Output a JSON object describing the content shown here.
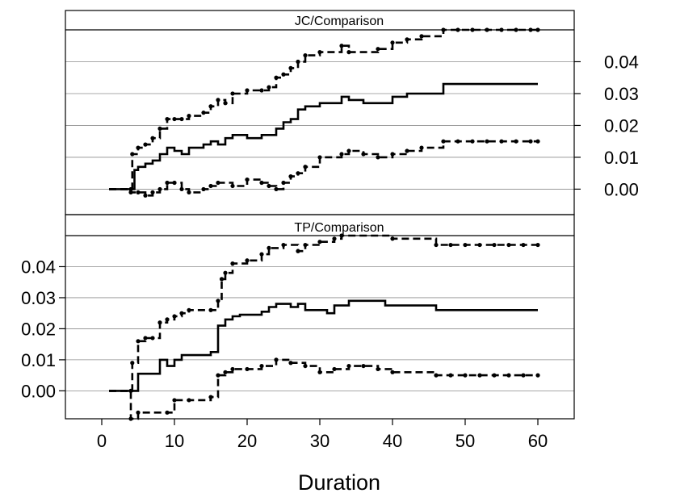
{
  "chart_data": {
    "type": "line",
    "xlabel": "Duration",
    "xlim": [
      -5,
      65
    ],
    "xticks": [
      0,
      10,
      20,
      30,
      40,
      50,
      60
    ],
    "panels": [
      {
        "title": "JC/Comparison",
        "ylim": [
          -0.008,
          0.05
        ],
        "yticks": [
          0.0,
          0.01,
          0.02,
          0.03,
          0.04
        ],
        "ytick_labels": [
          "0.00",
          "0.01",
          "0.02",
          "0.03",
          "0.04"
        ],
        "y_axis_side": "right",
        "grid": true,
        "series": [
          {
            "style": "solid",
            "steps": [
              [
                1,
                0.0
              ],
              [
                4,
                0.0
              ],
              [
                4.5,
                0.006
              ],
              [
                5,
                0.007
              ],
              [
                6,
                0.008
              ],
              [
                7,
                0.009
              ],
              [
                8,
                0.011
              ],
              [
                9,
                0.013
              ],
              [
                10,
                0.012
              ],
              [
                11,
                0.011
              ],
              [
                12,
                0.013
              ],
              [
                14,
                0.014
              ],
              [
                15,
                0.015
              ],
              [
                16,
                0.014
              ],
              [
                17,
                0.016
              ],
              [
                18,
                0.017
              ],
              [
                20,
                0.016
              ],
              [
                22,
                0.017
              ],
              [
                24,
                0.019
              ],
              [
                25,
                0.021
              ],
              [
                26,
                0.022
              ],
              [
                27,
                0.025
              ],
              [
                28,
                0.026
              ],
              [
                30,
                0.027
              ],
              [
                31,
                0.027
              ],
              [
                33,
                0.029
              ],
              [
                34,
                0.028
              ],
              [
                36,
                0.027
              ],
              [
                38,
                0.027
              ],
              [
                40,
                0.029
              ],
              [
                42,
                0.03
              ],
              [
                47,
                0.033
              ],
              [
                60,
                0.033
              ]
            ]
          },
          {
            "style": "dashed",
            "steps": [
              [
                1,
                0.0
              ],
              [
                4,
                0.0
              ],
              [
                4.2,
                0.011
              ],
              [
                5,
                0.013
              ],
              [
                6,
                0.014
              ],
              [
                7,
                0.016
              ],
              [
                8,
                0.019
              ],
              [
                9,
                0.022
              ],
              [
                10,
                0.022
              ],
              [
                11,
                0.022
              ],
              [
                12,
                0.023
              ],
              [
                14,
                0.024
              ],
              [
                15,
                0.026
              ],
              [
                16,
                0.028
              ],
              [
                17,
                0.027
              ],
              [
                18,
                0.03
              ],
              [
                20,
                0.031
              ],
              [
                22,
                0.031
              ],
              [
                23,
                0.032
              ],
              [
                24,
                0.035
              ],
              [
                25,
                0.036
              ],
              [
                26,
                0.038
              ],
              [
                27,
                0.04
              ],
              [
                28,
                0.042
              ],
              [
                30,
                0.043
              ],
              [
                33,
                0.045
              ],
              [
                34,
                0.043
              ],
              [
                38,
                0.044
              ],
              [
                40,
                0.046
              ],
              [
                42,
                0.047
              ],
              [
                44,
                0.048
              ],
              [
                47,
                0.05
              ],
              [
                60,
                0.05
              ]
            ]
          },
          {
            "style": "dashed",
            "steps": [
              [
                1,
                0.0
              ],
              [
                4,
                -0.001
              ],
              [
                5,
                -0.001
              ],
              [
                6,
                -0.002
              ],
              [
                7,
                -0.001
              ],
              [
                8,
                0.0
              ],
              [
                9,
                0.002
              ],
              [
                10,
                0.002
              ],
              [
                11,
                0.0
              ],
              [
                12,
                -0.001
              ],
              [
                14,
                0.0
              ],
              [
                15,
                0.001
              ],
              [
                16,
                0.002
              ],
              [
                18,
                0.001
              ],
              [
                20,
                0.003
              ],
              [
                22,
                0.002
              ],
              [
                23,
                0.001
              ],
              [
                24,
                0.0
              ],
              [
                25,
                0.002
              ],
              [
                26,
                0.004
              ],
              [
                27,
                0.005
              ],
              [
                28,
                0.007
              ],
              [
                30,
                0.01
              ],
              [
                33,
                0.011
              ],
              [
                34,
                0.012
              ],
              [
                36,
                0.011
              ],
              [
                38,
                0.01
              ],
              [
                40,
                0.011
              ],
              [
                42,
                0.012
              ],
              [
                44,
                0.013
              ],
              [
                47,
                0.015
              ],
              [
                60,
                0.015
              ]
            ]
          }
        ]
      },
      {
        "title": "TP/Comparison",
        "ylim": [
          -0.009,
          0.05
        ],
        "yticks": [
          0.0,
          0.01,
          0.02,
          0.03,
          0.04
        ],
        "ytick_labels": [
          "0.00",
          "0.01",
          "0.02",
          "0.03",
          "0.04"
        ],
        "y_axis_side": "left",
        "grid": true,
        "series": [
          {
            "style": "solid",
            "steps": [
              [
                1,
                0.0
              ],
              [
                4,
                0.0
              ],
              [
                4.5,
                0.0
              ],
              [
                5,
                0.0055
              ],
              [
                8,
                0.01
              ],
              [
                9,
                0.008
              ],
              [
                10,
                0.01
              ],
              [
                11,
                0.0115
              ],
              [
                14,
                0.0115
              ],
              [
                15,
                0.0125
              ],
              [
                16,
                0.021
              ],
              [
                17,
                0.023
              ],
              [
                18,
                0.024
              ],
              [
                19,
                0.0245
              ],
              [
                22,
                0.0255
              ],
              [
                23,
                0.027
              ],
              [
                24,
                0.028
              ],
              [
                26,
                0.027
              ],
              [
                27,
                0.028
              ],
              [
                28,
                0.026
              ],
              [
                31,
                0.025
              ],
              [
                32,
                0.0275
              ],
              [
                34,
                0.029
              ],
              [
                39,
                0.0275
              ],
              [
                46,
                0.026
              ],
              [
                60,
                0.026
              ]
            ]
          },
          {
            "style": "dashed",
            "steps": [
              [
                1,
                0.0
              ],
              [
                4,
                0.0
              ],
              [
                4.2,
                0.009
              ],
              [
                5,
                0.016
              ],
              [
                6,
                0.017
              ],
              [
                7,
                0.017
              ],
              [
                8,
                0.022
              ],
              [
                9,
                0.023
              ],
              [
                10,
                0.024
              ],
              [
                11,
                0.025
              ],
              [
                12,
                0.026
              ],
              [
                15,
                0.026
              ],
              [
                16,
                0.029
              ],
              [
                16.5,
                0.036
              ],
              [
                17,
                0.038
              ],
              [
                18,
                0.041
              ],
              [
                20,
                0.042
              ],
              [
                22,
                0.044
              ],
              [
                23,
                0.046
              ],
              [
                25,
                0.047
              ],
              [
                27,
                0.045
              ],
              [
                28,
                0.047
              ],
              [
                30,
                0.048
              ],
              [
                32,
                0.049
              ],
              [
                33,
                0.05
              ],
              [
                40,
                0.049
              ],
              [
                46,
                0.047
              ],
              [
                60,
                0.047
              ]
            ]
          },
          {
            "style": "dashed",
            "steps": [
              [
                1,
                0.0
              ],
              [
                4,
                -0.009
              ],
              [
                5,
                -0.007
              ],
              [
                9,
                -0.007
              ],
              [
                10,
                -0.003
              ],
              [
                12,
                -0.003
              ],
              [
                15,
                -0.002
              ],
              [
                16,
                0.005
              ],
              [
                17,
                0.006
              ],
              [
                18,
                0.007
              ],
              [
                20,
                0.007
              ],
              [
                22,
                0.008
              ],
              [
                24,
                0.01
              ],
              [
                26,
                0.009
              ],
              [
                28,
                0.008
              ],
              [
                30,
                0.006
              ],
              [
                32,
                0.007
              ],
              [
                34,
                0.008
              ],
              [
                36,
                0.008
              ],
              [
                38,
                0.007
              ],
              [
                40,
                0.006
              ],
              [
                46,
                0.005
              ],
              [
                60,
                0.005
              ]
            ]
          }
        ]
      }
    ]
  }
}
